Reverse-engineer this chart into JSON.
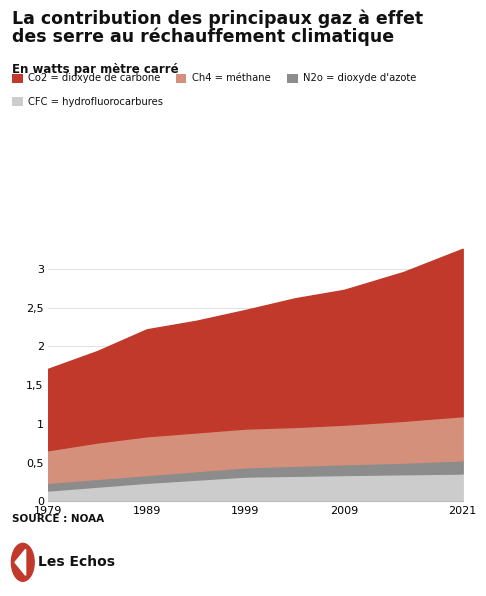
{
  "title_line1": "La contribution des principaux gaz à effet",
  "title_line2": "des serre au réchauffement climatique",
  "subtitle": "En watts par mètre carré",
  "source": "SOURCE : NOAA",
  "years": [
    1979,
    1984,
    1989,
    1994,
    1999,
    2004,
    2009,
    2015,
    2021
  ],
  "cfc": [
    0.14,
    0.19,
    0.24,
    0.28,
    0.32,
    0.33,
    0.34,
    0.35,
    0.36
  ],
  "n2o": [
    0.1,
    0.1,
    0.1,
    0.11,
    0.12,
    0.13,
    0.14,
    0.15,
    0.17
  ],
  "ch4": [
    0.42,
    0.47,
    0.5,
    0.5,
    0.5,
    0.5,
    0.51,
    0.54,
    0.57
  ],
  "co2": [
    1.05,
    1.18,
    1.38,
    1.44,
    1.53,
    1.66,
    1.74,
    1.92,
    2.16
  ],
  "colors": {
    "co2": "#C0392B",
    "ch4": "#D4907A",
    "n2o": "#8C8C8C",
    "cfc": "#CCCCCC"
  },
  "legend_labels": {
    "co2": "Co2 = dioxyde de carbone",
    "ch4": "Ch4 = méthane",
    "n2o": "N2o = dioxyde d'azote",
    "cfc": "CFC = hydrofluorocarbures"
  },
  "xticks": [
    1979,
    1989,
    1999,
    2009,
    2021
  ],
  "ylim": [
    0,
    3.4
  ],
  "yticks": [
    0,
    0.5,
    1,
    1.5,
    2,
    2.5,
    3
  ],
  "ytick_labels": [
    "0",
    "0,5",
    "1",
    "1,5",
    "2",
    "2,5",
    "3"
  ],
  "background_color": "#FFFFFF",
  "grid_color": "#E0E0E0",
  "logo_color": "#C0392B",
  "logo_text": "Les Echos"
}
